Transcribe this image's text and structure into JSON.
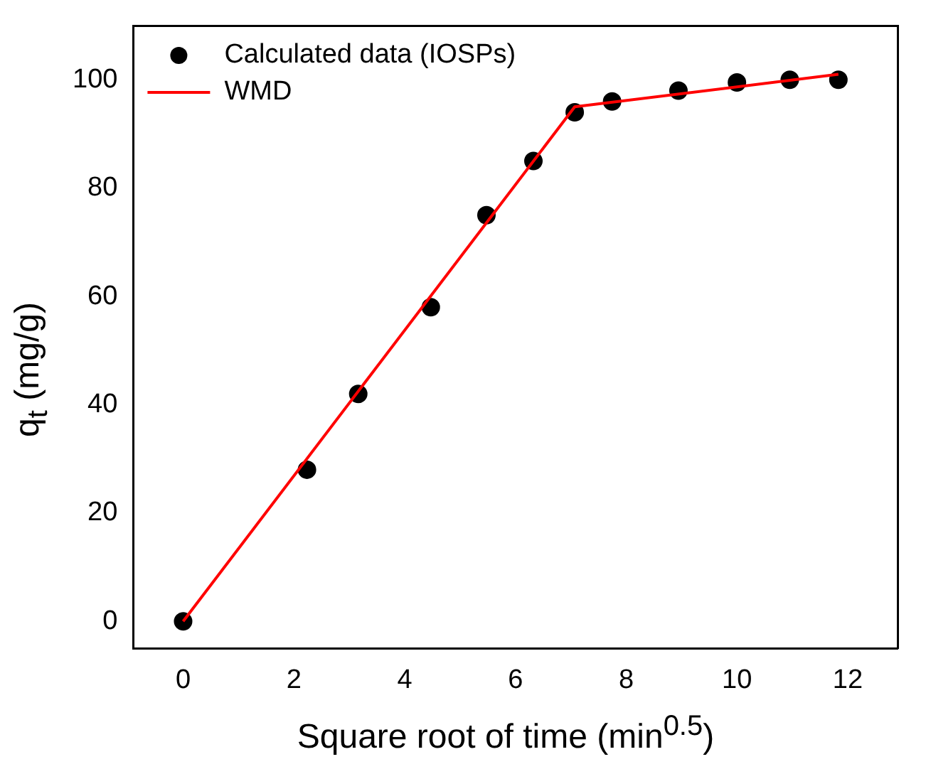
{
  "chart_data": {
    "type": "scatter",
    "xlabel": "Square root of time (min$^{0.5}$)",
    "ylabel": "q$_{t}$ (mg/g)",
    "xlim": [
      -0.9,
      12.9
    ],
    "xticks": [
      0,
      2,
      4,
      6,
      8,
      10,
      12
    ],
    "ylim": [
      -5,
      110
    ],
    "yticks": [
      0,
      20,
      40,
      60,
      80,
      100
    ],
    "grid": false,
    "legend": "top left",
    "marker": "circle",
    "series": [
      {
        "name": "Calculated data (IOSPs)",
        "type": "scatter",
        "color": "#000000",
        "x": [
          0,
          2.236,
          3.162,
          4.472,
          5.477,
          6.325,
          7.071,
          7.746,
          8.944,
          10,
          10.954,
          11.832
        ],
        "values": [
          0,
          28,
          42,
          58,
          75,
          85,
          94,
          96,
          98,
          99.5,
          100,
          100
        ]
      },
      {
        "name": "WMD",
        "type": "line",
        "color": "#ff0000",
        "line_style": "solid",
        "marker": "none",
        "x": [
          0,
          7.071,
          11.832
        ],
        "values": [
          0,
          95,
          101
        ]
      }
    ]
  }
}
